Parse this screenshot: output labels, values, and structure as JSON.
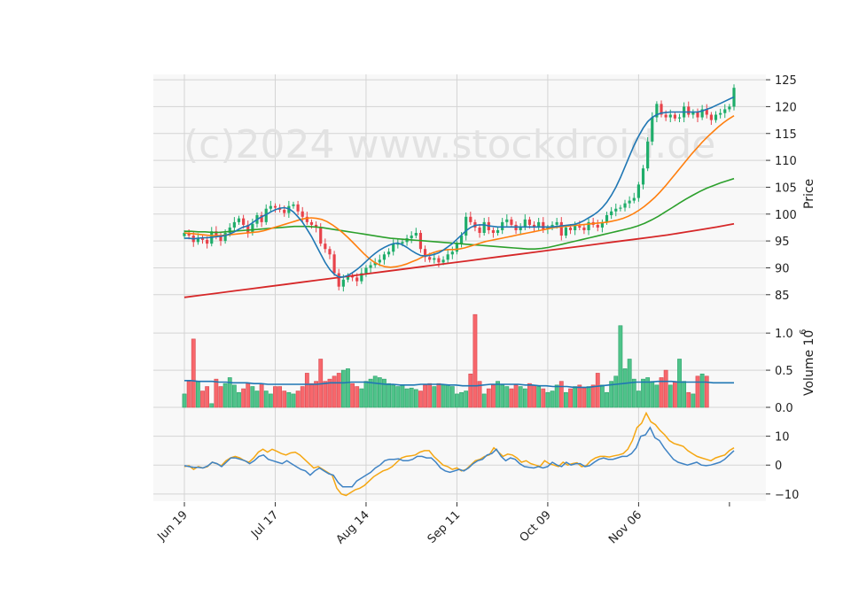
{
  "chart_data": [
    {
      "type": "candlestick",
      "panel": "price",
      "watermark": "(c)2024 www.stockdroid.de",
      "ylabel": "Price",
      "ylim": [
        82,
        126
      ],
      "yticks": [
        85,
        90,
        95,
        100,
        105,
        110,
        115,
        120,
        125
      ],
      "x_tick_labels": [
        "Jun 19",
        "Jul 17",
        "Aug 14",
        "Sep 11",
        "Oct 09",
        "Nov 06"
      ],
      "x_tick_index": [
        0,
        20,
        40,
        60,
        80,
        100
      ],
      "grid": true,
      "colors": {
        "up": "#1fad6a",
        "down": "#e8424a",
        "ma_fast": "#1f77b4",
        "ma_mid": "#ff7f0e",
        "ma_slow": "#2ca02c",
        "ma_long": "#d62728",
        "panel_bg": "#f8f8f8",
        "grid": "#d4d4d4"
      },
      "close": [
        96.5,
        96.0,
        94.8,
        95.5,
        95.2,
        94.5,
        96.8,
        96.0,
        95.0,
        96.5,
        97.5,
        98.5,
        99.2,
        98.0,
        96.5,
        98.2,
        99.8,
        98.5,
        101.0,
        101.5,
        101.2,
        100.8,
        100.2,
        101.5,
        101.8,
        100.5,
        99.5,
        98.5,
        98.0,
        97.5,
        94.5,
        93.5,
        92.5,
        89.0,
        86.5,
        87.8,
        88.5,
        88.2,
        87.5,
        89.0,
        90.0,
        90.5,
        91.0,
        91.5,
        92.5,
        93.0,
        94.5,
        94.5,
        94.8,
        95.5,
        96.0,
        96.5,
        93.5,
        92.0,
        91.5,
        91.8,
        91.0,
        91.5,
        92.5,
        93.0,
        94.5,
        96.0,
        99.5,
        98.5,
        97.5,
        96.5,
        98.5,
        97.0,
        96.5,
        97.0,
        98.5,
        99.0,
        98.0,
        97.0,
        97.5,
        99.0,
        98.0,
        97.5,
        98.5,
        97.2,
        97.5,
        98.0,
        98.5,
        96.0,
        97.5,
        97.0,
        97.8,
        97.5,
        97.0,
        98.5,
        98.0,
        97.5,
        98.5,
        99.8,
        100.5,
        101.0,
        101.2,
        102.0,
        102.5,
        103.0,
        105.5,
        108.5,
        113.5,
        118.0,
        120.5,
        118.5,
        118.0,
        118.5,
        117.8,
        118.0,
        120.0,
        118.5,
        119.0,
        118.0,
        119.5,
        118.5,
        117.5,
        118.5,
        118.8,
        119.5,
        120.0,
        123.5
      ],
      "ma_fast": [
        95.5,
        95.5,
        95.4,
        95.5,
        95.6,
        95.6,
        95.7,
        95.8,
        95.9,
        96.0,
        96.3,
        96.7,
        97.2,
        97.6,
        97.8,
        98.4,
        99.0,
        99.5,
        99.9,
        100.4,
        100.8,
        101.1,
        101.2,
        101.0,
        100.4,
        99.5,
        98.5,
        97.2,
        95.8,
        94.2,
        92.6,
        91.0,
        89.7,
        88.8,
        88.3,
        88.3,
        88.6,
        89.1,
        89.7,
        90.4,
        91.2,
        92.0,
        92.7,
        93.3,
        93.8,
        94.2,
        94.5,
        94.6,
        94.3,
        93.8,
        93.2,
        92.7,
        92.3,
        92.2,
        92.3,
        92.5,
        92.8,
        93.3,
        93.9,
        94.5,
        95.3,
        96.1,
        96.9,
        97.5,
        97.9,
        98.0,
        98.0,
        97.8,
        97.7,
        97.6,
        97.6,
        97.6,
        97.6,
        97.6,
        97.6,
        97.6,
        97.6,
        97.6,
        97.6,
        97.6,
        97.6,
        97.6,
        97.7,
        97.8,
        97.9,
        98.0,
        98.1,
        98.4,
        98.8,
        99.3,
        99.8,
        100.4,
        101.2,
        102.2,
        103.5,
        105.0,
        106.8,
        108.8,
        110.8,
        112.8,
        114.5,
        116.0,
        117.2,
        118.0,
        118.5,
        118.8,
        118.9,
        119.0,
        119.0,
        119.0,
        119.0,
        119.0,
        119.0,
        119.0,
        119.2,
        119.5,
        119.8,
        120.2,
        120.6,
        121.0,
        121.4,
        121.8
      ],
      "ma_mid": [
        96.5,
        96.4,
        96.3,
        96.2,
        96.1,
        96.0,
        96.0,
        96.0,
        96.1,
        96.2,
        96.3,
        96.4,
        96.5,
        96.6,
        96.7,
        96.9,
        97.2,
        97.5,
        97.8,
        98.1,
        98.4,
        98.7,
        99.0,
        99.2,
        99.3,
        99.2,
        99.0,
        98.6,
        98.0,
        97.3,
        96.5,
        95.6,
        94.6,
        93.6,
        92.6,
        91.7,
        91.0,
        90.5,
        90.2,
        90.1,
        90.2,
        90.4,
        90.7,
        91.1,
        91.5,
        92.0,
        92.4,
        92.8,
        93.1,
        93.3,
        93.4,
        93.4,
        93.5,
        93.7,
        94.0,
        94.3,
        94.6,
        94.9,
        95.1,
        95.3,
        95.5,
        95.7,
        95.9,
        96.1,
        96.3,
        96.5,
        96.7,
        96.9,
        97.1,
        97.3,
        97.5,
        97.6,
        97.7,
        97.8,
        97.9,
        98.0,
        98.1,
        98.2,
        98.3,
        98.4,
        98.5,
        98.7,
        98.9,
        99.2,
        99.6,
        100.1,
        100.7,
        101.4,
        102.2,
        103.1,
        104.1,
        105.2,
        106.4,
        107.6,
        108.8,
        110.0,
        111.2,
        112.3,
        113.4,
        114.4,
        115.3,
        116.2,
        117.0,
        117.7,
        118.3
      ],
      "ma_slow": [
        96.8,
        96.8,
        96.7,
        96.7,
        96.6,
        96.6,
        96.7,
        96.8,
        96.9,
        97.0,
        97.1,
        97.2,
        97.3,
        97.4,
        97.5,
        97.6,
        97.7,
        97.7,
        97.7,
        97.6,
        97.5,
        97.3,
        97.1,
        96.9,
        96.7,
        96.5,
        96.3,
        96.1,
        95.9,
        95.7,
        95.5,
        95.4,
        95.3,
        95.2,
        95.1,
        95.0,
        94.9,
        94.8,
        94.7,
        94.6,
        94.5,
        94.4,
        94.3,
        94.2,
        94.1,
        94.0,
        93.9,
        93.8,
        93.7,
        93.6,
        93.5,
        93.5,
        93.6,
        93.8,
        94.1,
        94.4,
        94.7,
        95.0,
        95.3,
        95.6,
        95.9,
        96.2,
        96.5,
        96.8,
        97.1,
        97.4,
        97.8,
        98.3,
        98.9,
        99.6,
        100.4,
        101.2,
        102.0,
        102.8,
        103.5,
        104.2,
        104.8,
        105.3,
        105.8,
        106.2,
        106.6
      ],
      "ma_long": [
        84.5,
        84.9,
        85.3,
        85.7,
        86.1,
        86.5,
        86.9,
        87.3,
        87.7,
        88.1,
        88.5,
        88.9,
        89.3,
        89.7,
        90.1,
        90.5,
        90.9,
        91.3,
        91.7,
        92.1,
        92.5,
        92.9,
        93.3,
        93.7,
        94.1,
        94.5,
        94.9,
        95.3,
        95.7,
        96.1,
        96.6,
        97.1,
        97.6,
        98.2
      ],
      "annotations": []
    },
    {
      "type": "bar",
      "panel": "volume",
      "ylabel": "Volume  10",
      "ylabel_exponent": "6",
      "ylim": [
        0,
        1.3
      ],
      "yticks": [
        0.0,
        0.5,
        1.0
      ],
      "ytick_labels": [
        "0.0",
        "0.5",
        "1.0"
      ],
      "values": [
        0.18,
        0.35,
        0.92,
        0.35,
        0.22,
        0.28,
        0.05,
        0.38,
        0.28,
        0.32,
        0.4,
        0.3,
        0.2,
        0.25,
        0.32,
        0.28,
        0.22,
        0.32,
        0.22,
        0.18,
        0.28,
        0.28,
        0.22,
        0.2,
        0.18,
        0.22,
        0.28,
        0.46,
        0.32,
        0.35,
        0.65,
        0.35,
        0.38,
        0.42,
        0.46,
        0.5,
        0.52,
        0.32,
        0.28,
        0.25,
        0.35,
        0.38,
        0.42,
        0.4,
        0.38,
        0.32,
        0.3,
        0.28,
        0.3,
        0.25,
        0.26,
        0.24,
        0.22,
        0.3,
        0.32,
        0.28,
        0.32,
        0.3,
        0.3,
        0.28,
        0.18,
        0.2,
        0.22,
        0.45,
        1.25,
        0.35,
        0.18,
        0.25,
        0.3,
        0.35,
        0.3,
        0.28,
        0.25,
        0.3,
        0.28,
        0.25,
        0.32,
        0.3,
        0.28,
        0.25,
        0.2,
        0.22,
        0.3,
        0.35,
        0.2,
        0.25,
        0.28,
        0.3,
        0.26,
        0.28,
        0.3,
        0.46,
        0.3,
        0.2,
        0.35,
        0.42,
        1.1,
        0.52,
        0.65,
        0.38,
        0.22,
        0.38,
        0.4,
        0.35,
        0.3,
        0.4,
        0.5,
        0.3,
        0.35,
        0.65,
        0.35,
        0.2,
        0.18,
        0.42,
        0.45,
        0.42
      ],
      "ma": [
        0.36,
        0.36,
        0.35,
        0.35,
        0.35,
        0.34,
        0.34,
        0.33,
        0.33,
        0.33,
        0.32,
        0.32,
        0.31,
        0.31,
        0.31,
        0.31,
        0.31,
        0.31,
        0.31,
        0.31,
        0.32,
        0.33,
        0.33,
        0.33,
        0.34,
        0.34,
        0.34,
        0.33,
        0.32,
        0.31,
        0.31,
        0.3,
        0.3,
        0.3,
        0.31,
        0.31,
        0.31,
        0.31,
        0.3,
        0.3,
        0.29,
        0.29,
        0.29,
        0.3,
        0.31,
        0.31,
        0.31,
        0.31,
        0.31,
        0.3,
        0.3,
        0.29,
        0.29,
        0.28,
        0.28,
        0.28,
        0.27,
        0.27,
        0.27,
        0.28,
        0.29,
        0.3,
        0.31,
        0.32,
        0.33,
        0.34,
        0.34,
        0.34,
        0.35,
        0.35,
        0.35,
        0.34,
        0.34,
        0.34,
        0.34,
        0.34,
        0.33,
        0.33,
        0.33,
        0.33
      ],
      "grid": true
    },
    {
      "type": "line",
      "panel": "indicator",
      "ylim": [
        -12.5,
        20
      ],
      "yticks": [
        -10,
        0,
        10
      ],
      "ytick_labels": [
        "−10",
        "0",
        "10"
      ],
      "series": [
        {
          "color": "#f5a712",
          "values": [
            -0.5,
            -0.2,
            -1.5,
            -0.5,
            -1.0,
            -0.5,
            1.0,
            0.5,
            -0.2,
            1.5,
            2.5,
            3.0,
            2.5,
            1.5,
            1.0,
            2.5,
            4.5,
            5.5,
            4.5,
            5.5,
            4.8,
            4.0,
            3.5,
            4.2,
            4.5,
            3.5,
            2.0,
            0.5,
            -1.0,
            -0.5,
            -1.5,
            -2.5,
            -3.5,
            -8.0,
            -10.0,
            -10.5,
            -9.5,
            -8.5,
            -8.0,
            -7.0,
            -5.5,
            -4.0,
            -3.0,
            -2.0,
            -1.5,
            -0.5,
            1.0,
            2.5,
            3.0,
            3.2,
            3.5,
            4.5,
            5.0,
            5.0,
            3.0,
            1.5,
            0.0,
            -0.5,
            -1.5,
            -1.0,
            -2.0,
            -1.5,
            0.0,
            1.5,
            2.0,
            3.0,
            3.5,
            6.0,
            4.5,
            3.0,
            3.8,
            3.5,
            2.5,
            1.0,
            1.5,
            0.5,
            0.0,
            -0.5,
            1.5,
            0.5,
            0.0,
            -0.5,
            1.0,
            0.0,
            0.5,
            0.8,
            -0.5,
            -0.2,
            1.5,
            2.5,
            3.0,
            3.0,
            2.8,
            3.2,
            3.5,
            4.0,
            5.5,
            8.5,
            13.0,
            14.5,
            18.0,
            15.0,
            14.0,
            12.0,
            10.5,
            8.5,
            7.5,
            7.0,
            6.5,
            5.0,
            4.0,
            3.0,
            2.5,
            2.0,
            1.5,
            2.5,
            3.0,
            3.5,
            5.0,
            6.0
          ]
        },
        {
          "color": "#3f83c4",
          "values": [
            -0.2,
            -0.5,
            -0.8,
            -0.8,
            -1.0,
            -0.3,
            1.0,
            0.5,
            -0.5,
            1.0,
            2.5,
            2.5,
            2.0,
            1.5,
            0.5,
            1.5,
            3.0,
            3.5,
            2.0,
            1.5,
            1.0,
            0.5,
            1.5,
            0.5,
            -0.5,
            -1.5,
            -2.0,
            -3.5,
            -2.0,
            -1.0,
            -2.0,
            -3.0,
            -3.5,
            -6.0,
            -7.5,
            -7.5,
            -7.5,
            -5.5,
            -4.5,
            -3.5,
            -2.5,
            -1.0,
            0.0,
            1.5,
            2.0,
            2.0,
            2.2,
            1.5,
            1.5,
            2.0,
            3.0,
            3.0,
            2.5,
            2.5,
            1.0,
            -1.0,
            -2.0,
            -2.5,
            -2.0,
            -1.5,
            -2.0,
            -1.0,
            0.5,
            1.5,
            2.0,
            3.5,
            4.0,
            5.5,
            3.0,
            1.5,
            2.5,
            2.0,
            0.5,
            -0.5,
            -0.8,
            -1.0,
            -0.5,
            -1.0,
            -0.5,
            1.0,
            0.0,
            -0.5,
            1.0,
            0.0,
            0.5,
            0.5,
            -0.5,
            -0.2,
            1.0,
            2.0,
            2.5,
            2.0,
            2.0,
            2.5,
            3.0,
            3.0,
            4.0,
            6.0,
            10.0,
            10.5,
            13.0,
            9.5,
            8.5,
            6.0,
            4.0,
            2.0,
            1.0,
            0.5,
            0.0,
            0.5,
            1.0,
            0.0,
            -0.2,
            0.0,
            0.5,
            1.0,
            2.0,
            3.5,
            5.0
          ]
        }
      ],
      "grid": true
    }
  ]
}
